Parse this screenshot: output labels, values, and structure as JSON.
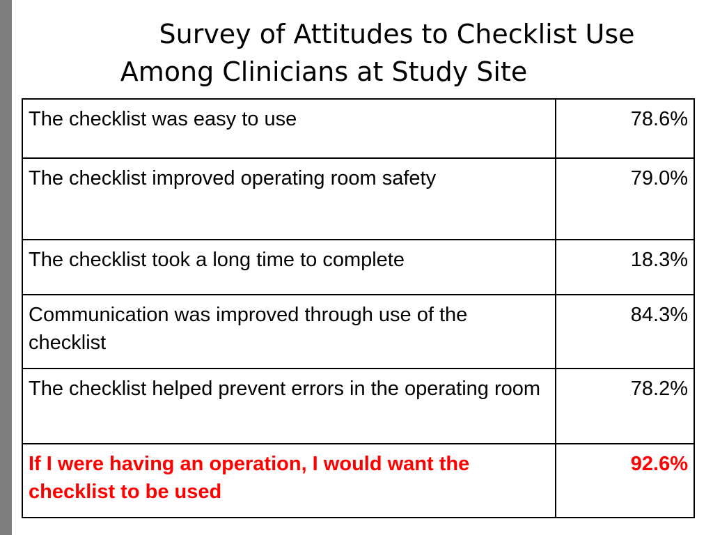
{
  "title": {
    "line1": "Survey of Attitudes to Checklist Use",
    "line2": "Among Clinicians at Study Site"
  },
  "rows": [
    {
      "statement": "The checklist was easy to use",
      "value": "78.6%"
    },
    {
      "statement": "The checklist improved operating room safety",
      "value": "79.0%"
    },
    {
      "statement": "The checklist took a long time to complete",
      "value": "18.3%"
    },
    {
      "statement": "Communication was improved through use of the checklist",
      "value": "84.3%"
    },
    {
      "statement": "The checklist helped prevent errors in the operating room",
      "value": "78.2%"
    },
    {
      "statement": "If I were having an operation, I would want the checklist to be used",
      "value": "92.6%"
    }
  ],
  "colors": {
    "highlight": "#ff0000",
    "side_bar": "#7f7f7f",
    "border": "#000000"
  }
}
